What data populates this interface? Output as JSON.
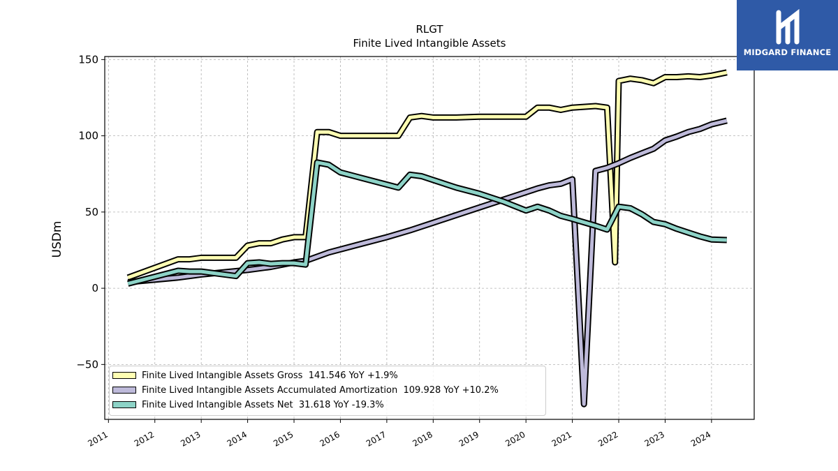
{
  "brand": {
    "name": "MIDGARD FINANCE",
    "color": "#2f5aa7"
  },
  "chart_data": {
    "type": "line",
    "title": "RLGT",
    "subtitle": "Finite Lived Intangible Assets",
    "xlabel": "",
    "ylabel": "USDm",
    "xlim": [
      2010.92,
      2024.92
    ],
    "ylim": [
      -86,
      152
    ],
    "yticks": [
      -50,
      0,
      50,
      100,
      150
    ],
    "xticks": [
      "2011",
      "2012",
      "2013",
      "2014",
      "2015",
      "2016",
      "2017",
      "2018",
      "2019",
      "2020",
      "2021",
      "2022",
      "2023",
      "2024"
    ],
    "grid": true,
    "legend_position": "lower-left",
    "series": [
      {
        "name": "Finite Lived Intangible Assets Gross",
        "legend": "Finite Lived Intangible Assets Gross  141.546 YoY +1.9%",
        "color": "#ffffb3",
        "x": [
          2011.42,
          2012.5,
          2012.75,
          2013.0,
          2013.75,
          2014.0,
          2014.25,
          2014.5,
          2014.75,
          2015.0,
          2015.25,
          2015.5,
          2015.75,
          2016.0,
          2017.25,
          2017.5,
          2017.75,
          2018.0,
          2018.5,
          2019.0,
          2019.5,
          2020.0,
          2020.25,
          2020.5,
          2020.75,
          2021.0,
          2021.5,
          2021.75,
          2021.92,
          2022.0,
          2022.25,
          2022.5,
          2022.75,
          2023.0,
          2023.25,
          2023.5,
          2023.75,
          2024.0,
          2024.33
        ],
        "values": [
          7,
          19,
          19,
          20,
          20,
          28,
          29.5,
          29.5,
          32,
          33.5,
          33.5,
          102.5,
          102.5,
          100,
          100,
          112,
          113,
          112,
          112,
          112.5,
          112.5,
          112.5,
          118.5,
          118.5,
          117,
          118.5,
          119.5,
          118.5,
          17,
          136,
          137.5,
          136.5,
          134.5,
          138.5,
          138.5,
          139,
          138.5,
          139.5,
          141.546
        ]
      },
      {
        "name": "Finite Lived Intangible Assets Accumulated Amortization",
        "legend": "Finite Lived Intangible Assets Accumulated Amortization  109.928 YoY +10.2%",
        "color": "#bebada",
        "x": [
          2011.42,
          2012.5,
          2013.0,
          2014.0,
          2014.5,
          2015.0,
          2015.25,
          2015.75,
          2016.5,
          2017.0,
          2017.5,
          2018.0,
          2018.5,
          2019.0,
          2019.5,
          2020.0,
          2020.25,
          2020.5,
          2020.75,
          2021.0,
          2021.25,
          2021.5,
          2021.75,
          2022.0,
          2022.25,
          2022.5,
          2022.75,
          2023.0,
          2023.25,
          2023.5,
          2023.75,
          2024.0,
          2024.33
        ],
        "values": [
          4,
          7,
          9,
          12,
          14,
          17,
          18,
          23.5,
          29.5,
          33.5,
          38,
          43,
          48,
          53,
          58,
          63,
          65.5,
          67.5,
          68.5,
          71.5,
          -76,
          77,
          79,
          82,
          85.5,
          88.5,
          91.5,
          97,
          99.5,
          102.5,
          104.5,
          107.5,
          109.928
        ]
      },
      {
        "name": "Finite Lived Intangible Assets Net",
        "legend": "Finite Lived Intangible Assets Net  31.618 YoY -19.3%",
        "color": "#8dd3c7",
        "x": [
          2011.42,
          2012.5,
          2012.75,
          2013.0,
          2013.75,
          2014.0,
          2014.25,
          2014.5,
          2014.75,
          2015.0,
          2015.25,
          2015.5,
          2015.75,
          2016.0,
          2017.25,
          2017.5,
          2017.75,
          2018.0,
          2018.5,
          2019.0,
          2019.5,
          2020.0,
          2020.25,
          2020.5,
          2020.75,
          2021.0,
          2021.5,
          2021.75,
          2022.0,
          2022.25,
          2022.5,
          2022.75,
          2023.0,
          2023.25,
          2023.5,
          2023.75,
          2024.0,
          2024.33
        ],
        "values": [
          3,
          11.5,
          11,
          11,
          8,
          16.5,
          17,
          16,
          16.5,
          16.5,
          15.5,
          82.5,
          81,
          76,
          66,
          74.5,
          73.5,
          71,
          66,
          62,
          57,
          51,
          53.5,
          51,
          47.5,
          45.5,
          41,
          38.5,
          53.5,
          52.5,
          48.5,
          43.5,
          42,
          39,
          36.5,
          34,
          32,
          31.618
        ]
      }
    ]
  }
}
